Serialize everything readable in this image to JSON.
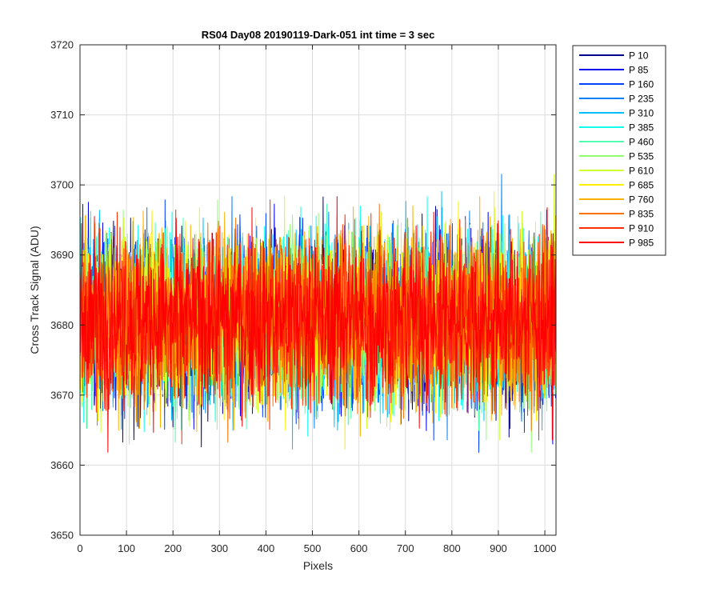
{
  "chart_data": {
    "type": "line",
    "title": "RS04 Day08 20190119-Dark-051 int time = 3 sec",
    "xlabel": "Pixels",
    "ylabel": "Cross Track Signal (ADU)",
    "xlim": [
      0,
      1024
    ],
    "ylim": [
      3650,
      3720
    ],
    "xticks": [
      0,
      100,
      200,
      300,
      400,
      500,
      600,
      700,
      800,
      900,
      1000
    ],
    "yticks": [
      3650,
      3660,
      3670,
      3680,
      3690,
      3700,
      3710,
      3720
    ],
    "grid": true,
    "legend_position": "outside-top-right",
    "noise_model": {
      "mean": 3681,
      "std": 6,
      "min": 3652,
      "max": 3713,
      "points_per_series": 1024
    },
    "series": [
      {
        "name": "P 10",
        "color": "#00008F"
      },
      {
        "name": "P 85",
        "color": "#0000EF"
      },
      {
        "name": "P 160",
        "color": "#0040FF"
      },
      {
        "name": "P 235",
        "color": "#0080FF"
      },
      {
        "name": "P 310",
        "color": "#00BFFF"
      },
      {
        "name": "P 385",
        "color": "#10FFEF"
      },
      {
        "name": "P 460",
        "color": "#50FFAF"
      },
      {
        "name": "P 535",
        "color": "#8FFF70"
      },
      {
        "name": "P 610",
        "color": "#CFFF30"
      },
      {
        "name": "P 685",
        "color": "#FFEF00"
      },
      {
        "name": "P 760",
        "color": "#FFAF00"
      },
      {
        "name": "P 835",
        "color": "#FF7000"
      },
      {
        "name": "P 910",
        "color": "#FF3000"
      },
      {
        "name": "P 985",
        "color": "#FF0000"
      }
    ]
  }
}
